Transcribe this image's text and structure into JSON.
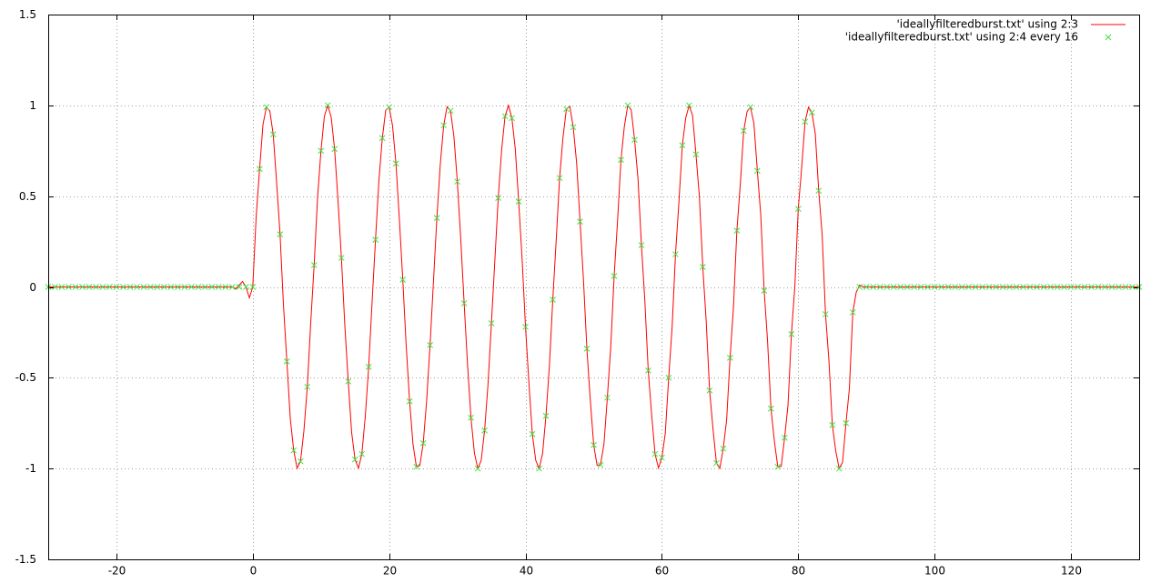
{
  "chart_data": {
    "type": "line",
    "xlim": [
      -30,
      130
    ],
    "ylim": [
      -1.5,
      1.5
    ],
    "xticks": [
      -20,
      0,
      20,
      40,
      60,
      80,
      100,
      120
    ],
    "yticks": [
      -1.5,
      -1,
      -0.5,
      0,
      0.5,
      1,
      1.5
    ],
    "grid": true,
    "legend": "top-right",
    "series": [
      {
        "name": "'ideallyfilteredburst.txt' using 2:3",
        "color": "#ff0000",
        "style": "line",
        "x": [
          -30,
          -3,
          -2.5,
          -2,
          -1.5,
          -1,
          -0.5,
          0,
          0.5,
          1,
          1.5,
          2,
          2.5,
          3,
          3.5,
          4,
          4.5,
          5,
          5.5,
          6,
          6.5,
          7,
          7.5,
          8,
          8.5,
          9,
          9.5,
          10,
          10.5,
          11,
          11.5,
          12,
          12.5,
          13,
          13.5,
          14,
          14.5,
          15,
          15.5,
          16,
          16.5,
          17,
          17.5,
          18,
          18.5,
          19,
          19.5,
          20,
          20.5,
          21,
          21.5,
          22,
          22.5,
          23,
          23.5,
          24,
          24.5,
          25,
          25.5,
          26,
          26.5,
          27,
          27.5,
          28,
          28.5,
          29,
          29.5,
          30,
          30.5,
          31,
          31.5,
          32,
          32.5,
          33,
          33.5,
          34,
          34.5,
          35,
          35.5,
          36,
          36.5,
          37,
          37.5,
          38,
          38.5,
          39,
          39.5,
          40,
          40.5,
          41,
          41.5,
          42,
          42.5,
          43,
          43.5,
          44,
          44.5,
          45,
          45.5,
          46,
          46.5,
          47,
          47.5,
          48,
          48.5,
          49,
          49.5,
          50,
          50.5,
          51,
          51.5,
          52,
          52.5,
          53,
          53.5,
          54,
          54.5,
          55,
          55.5,
          56,
          56.5,
          57,
          57.5,
          58,
          58.5,
          59,
          59.5,
          60,
          60.5,
          61,
          61.5,
          62,
          62.5,
          63,
          63.5,
          64,
          64.5,
          65,
          65.5,
          66,
          66.5,
          67,
          67.5,
          68,
          68.5,
          69,
          69.5,
          70,
          70.5,
          71,
          71.5,
          72,
          72.5,
          73,
          73.5,
          74,
          74.5,
          75,
          75.5,
          76,
          76.5,
          77,
          77.5,
          78,
          78.5,
          79,
          79.5,
          80,
          80.5,
          81,
          81.5,
          82,
          82.5,
          83,
          83.5,
          84,
          84.5,
          85,
          85.5,
          86,
          86.5,
          87,
          87.5,
          88,
          88.5,
          89,
          89.5,
          130
        ],
        "values": [
          0,
          0,
          -0.01,
          0.01,
          0.03,
          0,
          -0.06,
          0,
          0.388,
          0.65,
          0.895,
          0.99,
          0.969,
          0.84,
          0.573,
          0.29,
          -0.099,
          -0.41,
          -0.724,
          -0.9,
          -0.998,
          -0.96,
          -0.792,
          -0.55,
          -0.197,
          0.12,
          0.491,
          0.75,
          0.94,
          1.0,
          0.935,
          0.76,
          0.476,
          0.16,
          -0.213,
          -0.52,
          -0.801,
          -0.95,
          -0.998,
          -0.92,
          -0.713,
          -0.44,
          -0.084,
          0.26,
          0.587,
          0.82,
          0.973,
          0.99,
          0.888,
          0.68,
          0.373,
          0.04,
          -0.323,
          -0.63,
          -0.866,
          -0.99,
          -0.984,
          -0.86,
          -0.628,
          -0.32,
          0.03,
          0.38,
          0.675,
          0.89,
          0.993,
          0.97,
          0.829,
          0.58,
          0.265,
          -0.09,
          -0.429,
          -0.72,
          -0.913,
          -1.0,
          -0.956,
          -0.79,
          -0.536,
          -0.2,
          0.144,
          0.49,
          0.755,
          0.94,
          1.0,
          0.93,
          0.761,
          0.47,
          0.154,
          -0.22,
          -0.529,
          -0.81,
          -0.955,
          -1.0,
          -0.918,
          -0.71,
          -0.437,
          -0.07,
          0.256,
          0.6,
          0.824,
          0.98,
          0.994,
          0.88,
          0.682,
          0.36,
          0.04,
          -0.34,
          -0.622,
          -0.87,
          -0.982,
          -0.98,
          -0.867,
          -0.61,
          -0.331,
          0.06,
          0.364,
          0.7,
          0.884,
          1.0,
          0.975,
          0.81,
          0.595,
          0.23,
          -0.074,
          -0.46,
          -0.705,
          -0.92,
          -0.997,
          -0.94,
          -0.807,
          -0.5,
          -0.222,
          0.18,
          0.468,
          0.78,
          0.931,
          1.0,
          0.944,
          0.73,
          0.499,
          0.11,
          -0.188,
          -0.57,
          -0.783,
          -0.97,
          -0.999,
          -0.89,
          -0.731,
          -0.39,
          -0.11,
          0.31,
          0.565,
          0.86,
          0.966,
          0.99,
          0.9,
          0.64,
          0.398,
          -0.02,
          -0.298,
          -0.67,
          -0.849,
          -0.99,
          -0.988,
          -0.83,
          -0.65,
          -0.26,
          0.004,
          0.43,
          0.656,
          0.91,
          0.99,
          0.96,
          0.844,
          0.53,
          0.291,
          -0.15,
          -0.404,
          -0.76,
          -0.903,
          -1.0,
          -0.965,
          -0.75,
          -0.56,
          -0.14,
          -0.03,
          0.01,
          0,
          0
        ]
      },
      {
        "name": "'ideallyfilteredburst.txt' using 2:4 every 16",
        "color": "#44e044",
        "style": "points",
        "x": [
          -30,
          -29,
          -28,
          -27,
          -26,
          -25,
          -24,
          -23,
          -22,
          -21,
          -20,
          -19,
          -18,
          -17,
          -16,
          -15,
          -14,
          -13,
          -12,
          -11,
          -10,
          -9,
          -8,
          -7,
          -6,
          -5,
          -4,
          -3,
          -2,
          -1,
          0,
          1,
          2,
          3,
          4,
          5,
          6,
          7,
          8,
          9,
          10,
          11,
          12,
          13,
          14,
          15,
          16,
          17,
          18,
          19,
          20,
          21,
          22,
          23,
          24,
          25,
          26,
          27,
          28,
          29,
          30,
          31,
          32,
          33,
          34,
          35,
          36,
          37,
          38,
          39,
          40,
          41,
          42,
          43,
          44,
          45,
          46,
          47,
          48,
          49,
          50,
          51,
          52,
          53,
          54,
          55,
          56,
          57,
          58,
          59,
          60,
          61,
          62,
          63,
          64,
          65,
          66,
          67,
          68,
          69,
          70,
          71,
          72,
          73,
          74,
          75,
          76,
          77,
          78,
          79,
          80,
          81,
          82,
          83,
          84,
          85,
          86,
          87,
          88,
          89,
          90,
          91,
          92,
          93,
          94,
          95,
          96,
          97,
          98,
          99,
          100,
          101,
          102,
          103,
          104,
          105,
          106,
          107,
          108,
          109,
          110,
          111,
          112,
          113,
          114,
          115,
          116,
          117,
          118,
          119,
          120,
          121,
          122,
          123,
          124,
          125,
          126,
          127,
          128,
          129,
          130
        ],
        "values": [
          0,
          0,
          0,
          0,
          0,
          0,
          0,
          0,
          0,
          0,
          0,
          0,
          0,
          0,
          0,
          0,
          0,
          0,
          0,
          0,
          0,
          0,
          0,
          0,
          0,
          0,
          0,
          0,
          0,
          0,
          0,
          0.65,
          0.99,
          0.84,
          0.29,
          -0.41,
          -0.9,
          -0.96,
          -0.55,
          0.12,
          0.75,
          1.0,
          0.76,
          0.16,
          -0.52,
          -0.95,
          -0.92,
          -0.44,
          0.26,
          0.82,
          0.99,
          0.68,
          0.04,
          -0.63,
          -0.99,
          -0.86,
          -0.32,
          0.38,
          0.89,
          0.97,
          0.58,
          -0.09,
          -0.72,
          -1.0,
          -0.79,
          -0.2,
          0.49,
          0.94,
          0.93,
          0.47,
          -0.22,
          -0.81,
          -1.0,
          -0.71,
          -0.07,
          0.6,
          0.98,
          0.88,
          0.36,
          -0.34,
          -0.87,
          -0.98,
          -0.61,
          0.06,
          0.7,
          1.0,
          0.81,
          0.23,
          -0.46,
          -0.92,
          -0.94,
          -0.5,
          0.18,
          0.78,
          1.0,
          0.73,
          0.11,
          -0.57,
          -0.97,
          -0.89,
          -0.39,
          0.31,
          0.86,
          0.99,
          0.64,
          -0.02,
          -0.67,
          -0.99,
          -0.83,
          -0.26,
          0.43,
          0.91,
          0.96,
          0.53,
          -0.15,
          -0.76,
          -1.0,
          -0.75,
          -0.14,
          0,
          0,
          0,
          0,
          0,
          0,
          0,
          0,
          0,
          0,
          0,
          0,
          0,
          0,
          0,
          0,
          0,
          0,
          0,
          0,
          0,
          0,
          0,
          0,
          0,
          0,
          0,
          0,
          0,
          0,
          0,
          0,
          0,
          0,
          0,
          0,
          0,
          0,
          0,
          0,
          0,
          0
        ]
      }
    ]
  }
}
